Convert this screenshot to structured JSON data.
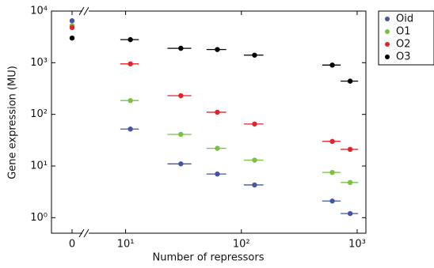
{
  "chart_data": {
    "type": "scatter",
    "x_label": "Number of repressors",
    "y_label": "Gene expression (MU)",
    "x": [
      0,
      11,
      30,
      62,
      130,
      610,
      870
    ],
    "xerr": [
      0,
      2,
      7,
      12,
      25,
      110,
      150
    ],
    "xlim": [
      4.8,
      1190
    ],
    "ylim": [
      0.5,
      10000
    ],
    "x_log": true,
    "y_log": true,
    "x_break": true,
    "xticks": [
      0,
      {
        "value": 10,
        "label": "10¹"
      },
      {
        "value": 100,
        "label": "10²"
      },
      {
        "value": 1000,
        "label": "10³"
      }
    ],
    "yticks": [
      {
        "value": 1,
        "label": "10⁰"
      },
      {
        "value": 10,
        "label": "10¹"
      },
      {
        "value": 100,
        "label": "10²"
      },
      {
        "value": 1000,
        "label": "10³"
      },
      {
        "value": 10000,
        "label": "10⁴"
      }
    ],
    "legend": "outside right",
    "series": [
      {
        "name": "Oid",
        "color": "#4555a5",
        "values": [
          6500,
          52,
          11,
          7,
          4.3,
          2.1,
          1.2
        ]
      },
      {
        "name": "O1",
        "color": "#79c143",
        "values": [
          5200,
          185,
          41,
          22,
          13,
          7.5,
          4.8
        ]
      },
      {
        "name": "O2",
        "color": "#e0242a",
        "values": [
          4800,
          950,
          230,
          110,
          65,
          30,
          21
        ]
      },
      {
        "name": "O3",
        "color": "#000000",
        "values": [
          3000,
          2800,
          1900,
          1800,
          1400,
          900,
          440
        ]
      }
    ]
  }
}
